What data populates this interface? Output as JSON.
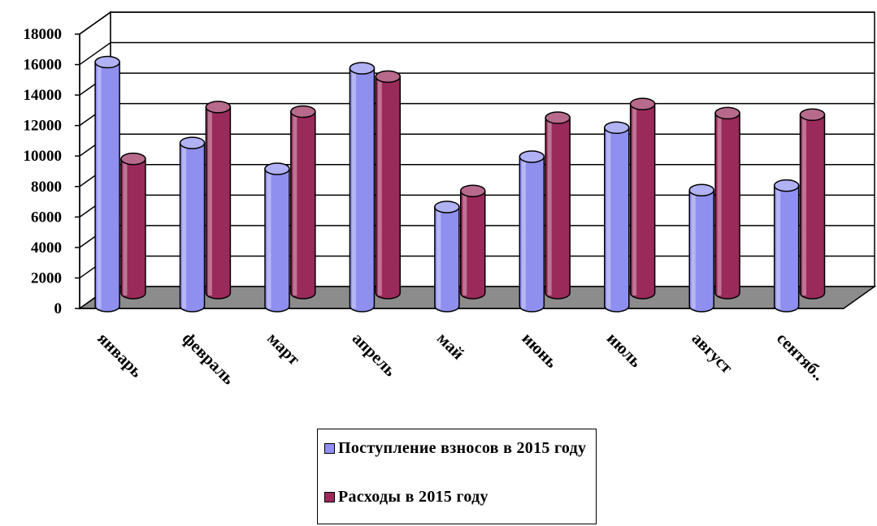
{
  "chart_data": {
    "type": "bar",
    "categories": [
      "январь",
      "февраль",
      "март",
      "апрель",
      "май",
      "июнь",
      "июль",
      "август",
      "сентяб.."
    ],
    "series": [
      {
        "name": "Поступление взносов в 2015 году",
        "color": "#8f8ff0",
        "values": [
          16000,
          10700,
          9000,
          15600,
          6500,
          9800,
          11700,
          7600,
          7900
        ]
      },
      {
        "name": "Расходы в 2015 году",
        "color": "#9a2a5a",
        "values": [
          8800,
          12200,
          11900,
          14200,
          6700,
          11500,
          12400,
          11800,
          11700
        ]
      }
    ],
    "y_ticks": [
      "0",
      "2000",
      "4000",
      "6000",
      "8000",
      "10000",
      "12000",
      "14000",
      "16000",
      "18000"
    ],
    "ylim": [
      0,
      18000
    ],
    "grid": true,
    "legend_position": "bottom",
    "floor_color": "#8c8c8c"
  }
}
